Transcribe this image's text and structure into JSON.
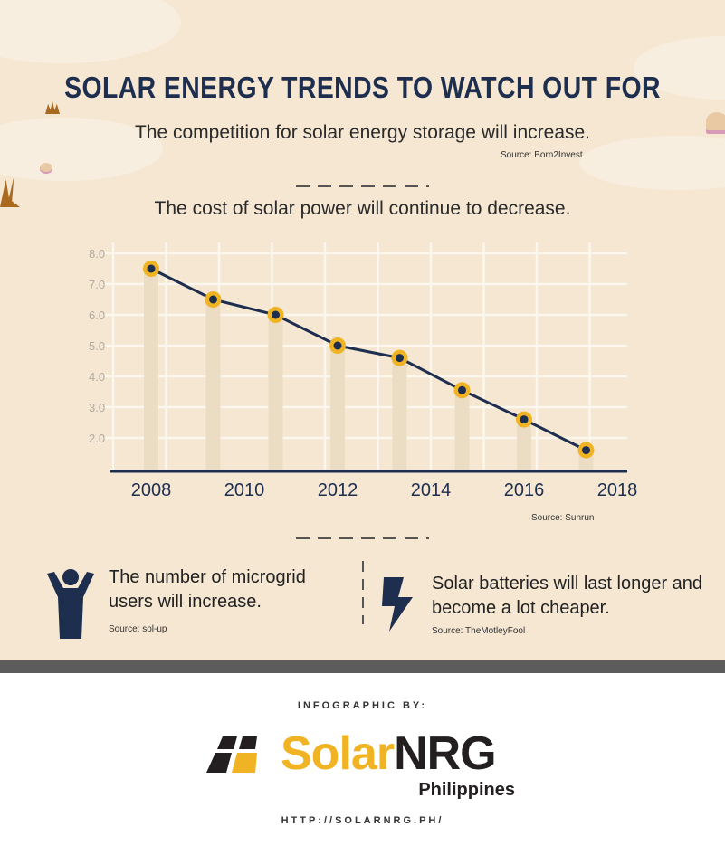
{
  "title": "SOLAR ENERGY TRENDS TO WATCH OUT FOR",
  "trend1": {
    "text": "The competition for solar energy storage will increase.",
    "source": "Source: Born2Invest"
  },
  "trend2": {
    "text": "The cost of solar power will continue to decrease.",
    "source": "Source: Sunrun"
  },
  "trend3": {
    "text": "The number of microgrid users will increase.",
    "source": "Source: sol-up",
    "icon": "person-icon"
  },
  "trend4": {
    "text": "Solar batteries will last longer and become a lot cheaper.",
    "source": "Source: TheMotleyFool",
    "icon": "lightning-icon"
  },
  "chart_data": {
    "type": "line",
    "x": [
      2008,
      2009.33,
      2010.67,
      2012,
      2013.33,
      2014.67,
      2016,
      2017.33
    ],
    "values": [
      7.5,
      6.5,
      6.0,
      5.0,
      4.6,
      3.55,
      2.6,
      1.6
    ],
    "x_ticks": [
      "2008",
      "2010",
      "2012",
      "2014",
      "2016",
      "2018"
    ],
    "y_ticks": [
      "2.0",
      "3.0",
      "4.0",
      "5.0",
      "6.0",
      "7.0",
      "8.0"
    ],
    "ylim": [
      0.9,
      8.0
    ],
    "xlim": [
      2008,
      2018
    ],
    "grid": true,
    "colors": {
      "line": "#1e2e4f",
      "marker": "#f0b323",
      "marker_center": "#1e2e4f"
    }
  },
  "footer": {
    "credit": "INFOGRAPHIC BY:",
    "logo_solar": "Solar",
    "logo_nrg": "NRG",
    "logo_country": "Philippines",
    "url": "HTTP://SOLARNRG.PH/"
  },
  "colors": {
    "background": "#f5e7d2",
    "title": "#1e2e4f",
    "accent": "#f0b323"
  }
}
